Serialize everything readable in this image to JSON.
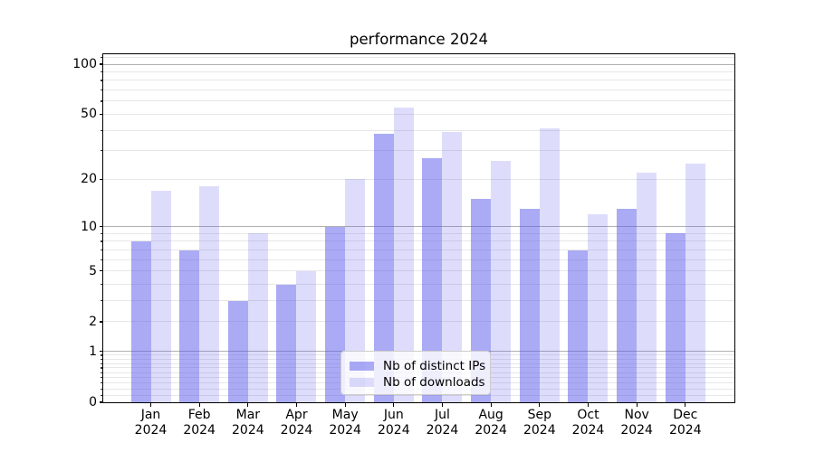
{
  "title": "performance 2024",
  "chart_data": {
    "type": "bar",
    "title": "performance 2024",
    "categories": [
      "Jan",
      "Feb",
      "Mar",
      "Apr",
      "May",
      "Jun",
      "Jul",
      "Aug",
      "Sep",
      "Oct",
      "Nov",
      "Dec"
    ],
    "category_year": "2024",
    "series": [
      {
        "name": "Nb of distinct IPs",
        "values": [
          8,
          7,
          3,
          4,
          10,
          38,
          27,
          15,
          13,
          7,
          13,
          9
        ]
      },
      {
        "name": "Nb of downloads",
        "values": [
          17,
          18,
          9,
          5,
          20,
          55,
          39,
          26,
          41,
          12,
          22,
          25
        ]
      }
    ],
    "yscale": "log1p",
    "ylim": [
      0,
      115
    ],
    "y_tick_values": [
      100,
      50,
      20,
      10,
      5,
      2,
      1,
      0
    ],
    "y_tick_labels": [
      "100",
      "50",
      "20",
      "10",
      "5",
      "2",
      "1",
      "0"
    ],
    "y_major_gridlines": [
      1,
      10,
      100
    ],
    "y_minor_gridlines": [
      0.1,
      0.2,
      0.3,
      0.4,
      0.5,
      0.6,
      0.7,
      0.8,
      0.9,
      2,
      3,
      4,
      5,
      6,
      7,
      8,
      9,
      20,
      30,
      40,
      50,
      60,
      70,
      80,
      90,
      110
    ],
    "grid": true,
    "legend_position": "lower center",
    "colors": {
      "bar_distinct_ips": "#aaaaf3",
      "bar_downloads": "#dcdcf8",
      "grid_major": "#b0b0b0",
      "grid_minor": "#e7e7e7",
      "spine": "#000000"
    }
  }
}
